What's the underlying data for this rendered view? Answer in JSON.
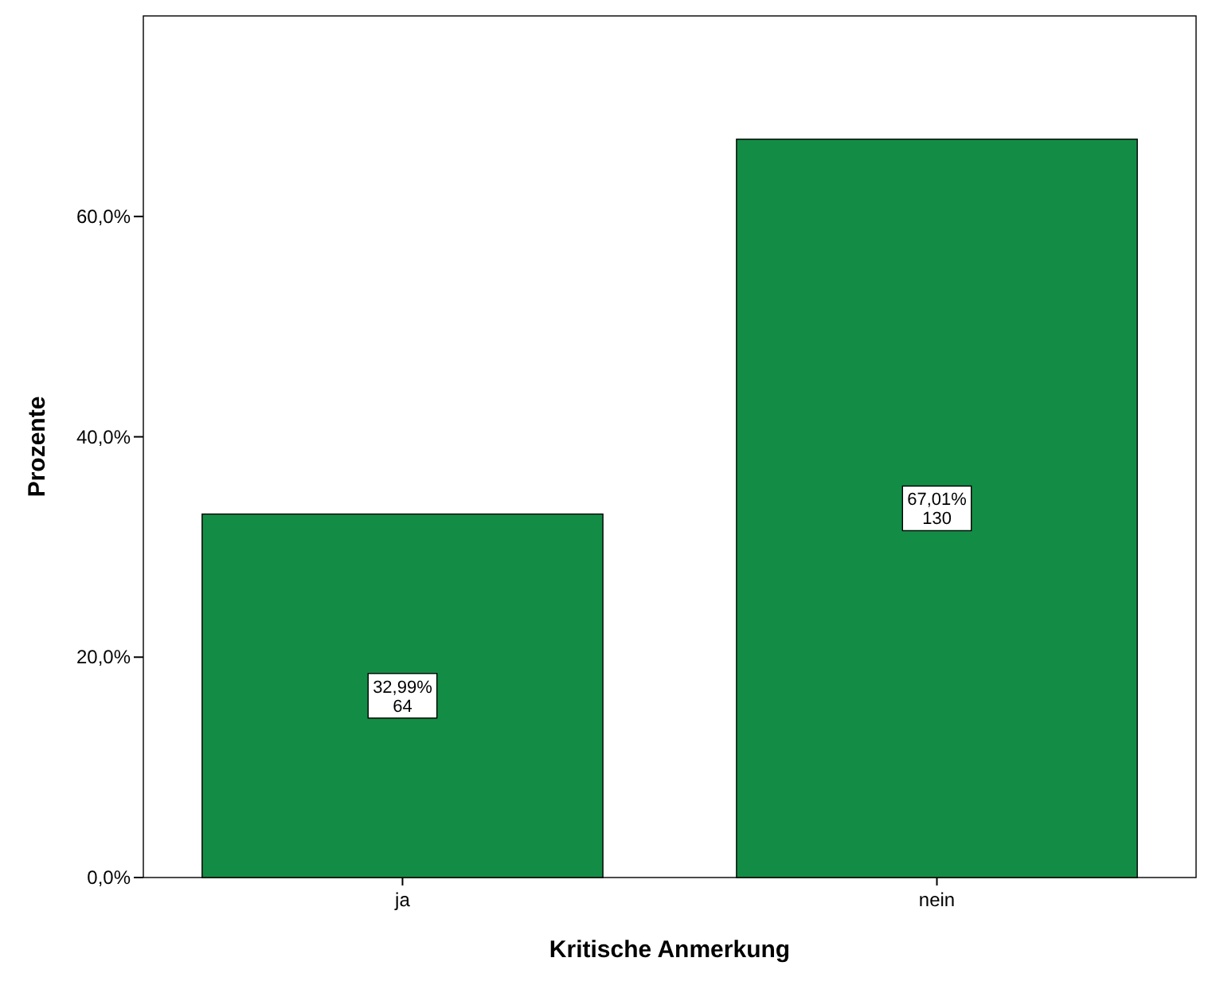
{
  "chart_data": {
    "type": "bar",
    "xlabel": "Kritische Anmerkung",
    "ylabel": "Prozente",
    "categories": [
      "ja",
      "nein"
    ],
    "values": [
      32.99,
      67.01
    ],
    "value_labels": [
      "32,99%\n64",
      "67,01%\n130"
    ],
    "color": "#138d46",
    "ylim": [
      0,
      78.2
    ],
    "yticks": [
      {
        "value": 0,
        "label": "0,0%"
      },
      {
        "value": 20,
        "label": "20,0%"
      },
      {
        "value": 40,
        "label": "40,0%"
      },
      {
        "value": 60,
        "label": "60,0%"
      }
    ],
    "grid": false
  }
}
